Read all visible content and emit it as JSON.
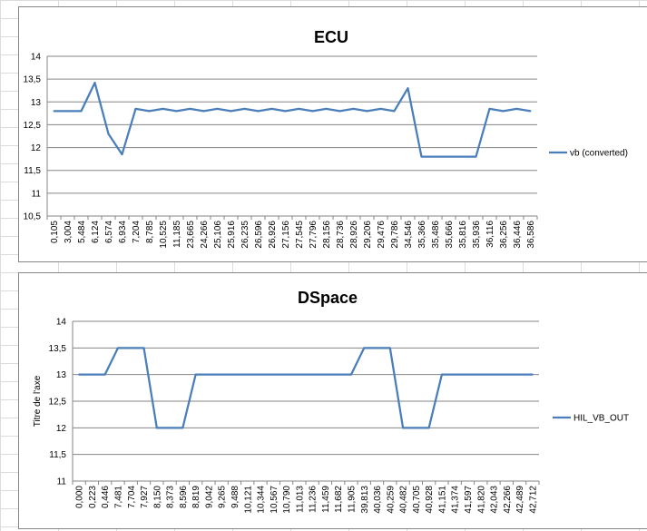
{
  "chart_data": [
    {
      "type": "line",
      "title": "ECU",
      "xlabel": "",
      "ylabel": "",
      "ylim": [
        10.5,
        14
      ],
      "y_ticks": [
        "10,5",
        "11",
        "11,5",
        "12",
        "12,5",
        "13",
        "13,5",
        "14"
      ],
      "legend_position": "right",
      "grid": true,
      "categories": [
        "0,105",
        "3,004",
        "5,484",
        "6,124",
        "6,574",
        "6,934",
        "7,204",
        "8,785",
        "10,525",
        "11,185",
        "23,665",
        "24,266",
        "25,106",
        "25,916",
        "26,235",
        "26,596",
        "26,926",
        "27,156",
        "27,545",
        "27,796",
        "28,156",
        "28,736",
        "28,926",
        "29,206",
        "29,476",
        "29,786",
        "34,546",
        "35,366",
        "35,486",
        "35,666",
        "35,816",
        "35,936",
        "36,116",
        "36,256",
        "36,446",
        "36,586"
      ],
      "series": [
        {
          "name": "vb (converted)",
          "color": "#4a7ebb",
          "values": [
            12.8,
            12.8,
            12.8,
            13.42,
            12.3,
            11.85,
            12.85,
            12.8,
            12.85,
            12.8,
            12.85,
            12.8,
            12.85,
            12.8,
            12.85,
            12.8,
            12.85,
            12.8,
            12.85,
            12.8,
            12.85,
            12.8,
            12.85,
            12.8,
            12.85,
            12.8,
            13.3,
            11.8,
            11.8,
            11.8,
            11.8,
            11.8,
            12.85,
            12.8,
            12.85,
            12.8
          ]
        }
      ]
    },
    {
      "type": "line",
      "title": "DSpace",
      "xlabel": "",
      "ylabel": "Titre de l'axe",
      "ylim": [
        11,
        14
      ],
      "y_ticks": [
        "11",
        "11,5",
        "12",
        "12,5",
        "13",
        "13,5",
        "14"
      ],
      "legend_position": "right",
      "grid": true,
      "categories": [
        "0,000",
        "0,223",
        "0,446",
        "7,481",
        "7,704",
        "7,927",
        "8,150",
        "8,373",
        "8,596",
        "8,819",
        "9,042",
        "9,265",
        "9,488",
        "10,121",
        "10,344",
        "10,567",
        "10,790",
        "11,013",
        "11,236",
        "11,459",
        "11,682",
        "11,905",
        "39,813",
        "40,036",
        "40,259",
        "40,482",
        "40,705",
        "40,928",
        "41,151",
        "41,374",
        "41,597",
        "41,820",
        "42,043",
        "42,266",
        "42,489",
        "42,712"
      ],
      "series": [
        {
          "name": "HIL_VB_OUT",
          "color": "#4a7ebb",
          "values": [
            13,
            13,
            13,
            13.5,
            13.5,
            13.5,
            12,
            12,
            12,
            13,
            13,
            13,
            13,
            13,
            13,
            13,
            13,
            13,
            13,
            13,
            13,
            13,
            13.5,
            13.5,
            13.5,
            12,
            12,
            12,
            13,
            13,
            13,
            13,
            13,
            13,
            13,
            13
          ]
        }
      ]
    }
  ]
}
